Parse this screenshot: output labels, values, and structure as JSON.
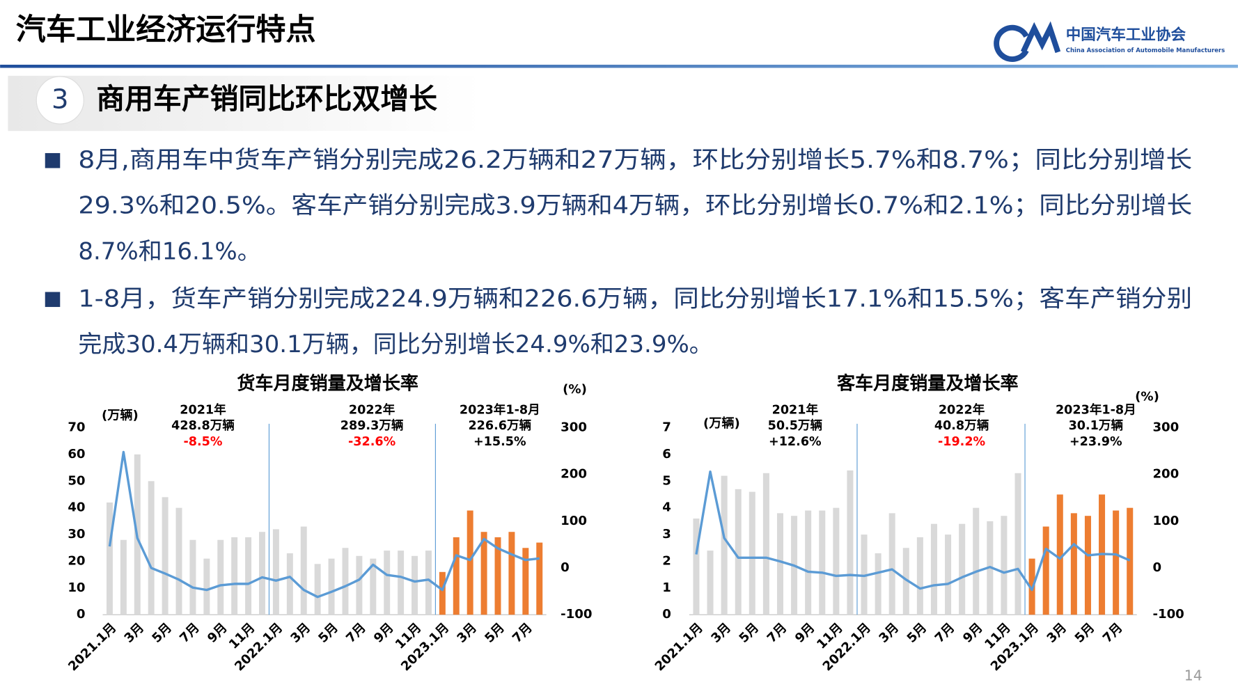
{
  "header": {
    "title": "汽车工业经济运行特点",
    "org_name": "中国汽车工业协会",
    "org_name_en": "China Association of Automobile Manufacturers"
  },
  "section": {
    "number": "3",
    "title": "商用车产销同比环比双增长"
  },
  "bullets": [
    [
      "8月,商用车中货车产销分别完成26.2万辆和27万辆，环比分别增长5.7%和8.7%；同比分别增长",
      "29.3%和20.5%。客车产销分别完成3.9万辆和4万辆，环比分别增长0.7%和2.1%；同比分别增长",
      "8.7%和16.1%。"
    ],
    [
      "1-8月，货车产销分别完成224.9万辆和226.6万辆，同比分别增长17.1%和15.5%；客车产销分别",
      "完成30.4万辆和30.1万辆，同比分别增长24.9%和23.9%。"
    ]
  ],
  "chart_data": [
    {
      "type": "bar",
      "title": "货车月度销量及增长率",
      "y_label": "(万辆)",
      "y2_label": "(%)",
      "categories": [
        "2021.1月",
        null,
        "3月",
        null,
        "5月",
        null,
        "7月",
        null,
        "9月",
        null,
        "11月",
        null,
        "2022.1月",
        null,
        "3月",
        null,
        "5月",
        null,
        "7月",
        null,
        "9月",
        null,
        "11月",
        null,
        "2023.1月",
        null,
        "3月",
        null,
        "5月",
        null,
        "7月",
        null
      ],
      "series": [
        {
          "type": "bar",
          "colors": [
            "#d9d9d9",
            "#d9d9d9",
            "#d9d9d9",
            "#d9d9d9",
            "#d9d9d9",
            "#d9d9d9",
            "#d9d9d9",
            "#d9d9d9",
            "#d9d9d9",
            "#d9d9d9",
            "#d9d9d9",
            "#d9d9d9",
            "#d9d9d9",
            "#d9d9d9",
            "#d9d9d9",
            "#d9d9d9",
            "#d9d9d9",
            "#d9d9d9",
            "#d9d9d9",
            "#d9d9d9",
            "#d9d9d9",
            "#d9d9d9",
            "#d9d9d9",
            "#d9d9d9",
            "#ed7d31",
            "#ed7d31",
            "#ed7d31",
            "#ed7d31",
            "#ed7d31",
            "#ed7d31",
            "#ed7d31",
            "#ed7d31"
          ],
          "values": [
            42,
            28,
            60,
            50,
            44,
            40,
            28,
            21,
            28,
            29,
            29,
            31,
            32,
            23,
            33,
            19,
            21,
            25,
            22,
            21,
            24,
            24,
            22,
            24,
            16,
            29,
            39,
            31,
            29,
            31,
            25,
            27
          ]
        },
        {
          "type": "line",
          "axis": "y2",
          "color": "#5b9bd5",
          "values": [
            46,
            248,
            64,
            0,
            -12,
            -25,
            -42,
            -47,
            -37,
            -34,
            -34,
            -20,
            -27,
            -19,
            -47,
            -62,
            -51,
            -39,
            -25,
            7,
            -15,
            -19,
            -29,
            -25,
            -47,
            27,
            17,
            62,
            42,
            29,
            17,
            20.5
          ]
        }
      ],
      "ylim": [
        0,
        70
      ],
      "yticks": [
        0,
        10,
        20,
        30,
        40,
        50,
        60,
        70
      ],
      "y2lim": [
        -100,
        300
      ],
      "y2ticks": [
        -100,
        0,
        100,
        200,
        300
      ],
      "annotations": [
        {
          "year": "2021年",
          "total": "428.8万辆",
          "growth": "-8.5%",
          "growth_color": "#ff0000"
        },
        {
          "year": "2022年",
          "total": "289.3万辆",
          "growth": "-32.6%",
          "growth_color": "#ff0000"
        },
        {
          "year": "2023年1-8月",
          "total": "226.6万辆",
          "growth": "+15.5%",
          "growth_color": "#000000"
        }
      ]
    },
    {
      "type": "bar",
      "title": "客车月度销量及增长率",
      "y_label": "(万辆)",
      "y2_label": "(%)",
      "categories": [
        "2021.1月",
        null,
        "3月",
        null,
        "5月",
        null,
        "7月",
        null,
        "9月",
        null,
        "11月",
        null,
        "2022.1月",
        null,
        "3月",
        null,
        "5月",
        null,
        "7月",
        null,
        "9月",
        null,
        "11月",
        null,
        "2023.1月",
        null,
        "3月",
        null,
        "5月",
        null,
        "7月",
        null
      ],
      "series": [
        {
          "type": "bar",
          "colors": [
            "#d9d9d9",
            "#d9d9d9",
            "#d9d9d9",
            "#d9d9d9",
            "#d9d9d9",
            "#d9d9d9",
            "#d9d9d9",
            "#d9d9d9",
            "#d9d9d9",
            "#d9d9d9",
            "#d9d9d9",
            "#d9d9d9",
            "#d9d9d9",
            "#d9d9d9",
            "#d9d9d9",
            "#d9d9d9",
            "#d9d9d9",
            "#d9d9d9",
            "#d9d9d9",
            "#d9d9d9",
            "#d9d9d9",
            "#d9d9d9",
            "#d9d9d9",
            "#d9d9d9",
            "#ed7d31",
            "#ed7d31",
            "#ed7d31",
            "#ed7d31",
            "#ed7d31",
            "#ed7d31",
            "#ed7d31",
            "#ed7d31"
          ],
          "values": [
            3.6,
            2.4,
            5.2,
            4.7,
            4.6,
            5.3,
            3.8,
            3.7,
            3.9,
            3.9,
            4.0,
            5.4,
            3.0,
            2.3,
            3.8,
            2.5,
            2.9,
            3.4,
            3.0,
            3.4,
            4.0,
            3.5,
            3.7,
            5.3,
            2.1,
            3.3,
            4.5,
            3.8,
            3.7,
            4.5,
            3.9,
            4.0
          ]
        },
        {
          "type": "line",
          "axis": "y2",
          "color": "#5b9bd5",
          "values": [
            29,
            206,
            64,
            22,
            22,
            22,
            14,
            5,
            -8,
            -10,
            -17,
            -15,
            -17,
            -10,
            -3,
            -25,
            -44,
            -37,
            -34,
            -20,
            -8,
            2,
            -10,
            -2,
            -47,
            41,
            20,
            51,
            27,
            30,
            29,
            16.1
          ]
        }
      ],
      "ylim": [
        0,
        7
      ],
      "yticks": [
        0,
        1,
        2,
        3,
        4,
        5,
        6,
        7
      ],
      "y2lim": [
        -100,
        300
      ],
      "y2ticks": [
        -100,
        0,
        100,
        200,
        300
      ],
      "annotations": [
        {
          "year": "2021年",
          "total": "50.5万辆",
          "growth": "+12.6%",
          "growth_color": "#000000"
        },
        {
          "year": "2022年",
          "total": "40.8万辆",
          "growth": "-19.2%",
          "growth_color": "#ff0000"
        },
        {
          "year": "2023年1-8月",
          "total": "30.1万辆",
          "growth": "+23.9%",
          "growth_color": "#000000"
        }
      ]
    }
  ],
  "page_number": "14"
}
